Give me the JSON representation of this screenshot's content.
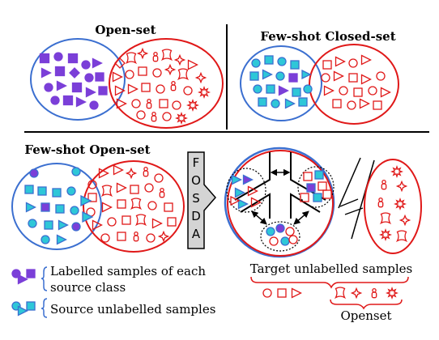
{
  "panels": {
    "open_set": {
      "title": "Open-set"
    },
    "few_shot_closed_set": {
      "title": "Few-shot Closed-set"
    },
    "few_shot_open_set": {
      "title": "Few-shot Open-set"
    }
  },
  "method": {
    "letters": [
      "F",
      "O",
      "S",
      "D",
      "A"
    ]
  },
  "legend": {
    "labelled_line1": "Labelled samples of each",
    "labelled_line2": "source class",
    "source_unlabelled": "Source unlabelled samples",
    "target_unlabelled": "Target unlabelled samples",
    "openset": "Openset"
  },
  "colors": {
    "source_blue": "#3b6fd0",
    "target_red": "#e01818",
    "labelled_purple": "#7b3fd8",
    "unlabelled_cyan": "#2ec7d8",
    "arrow_gray": "#d4d4d4"
  }
}
